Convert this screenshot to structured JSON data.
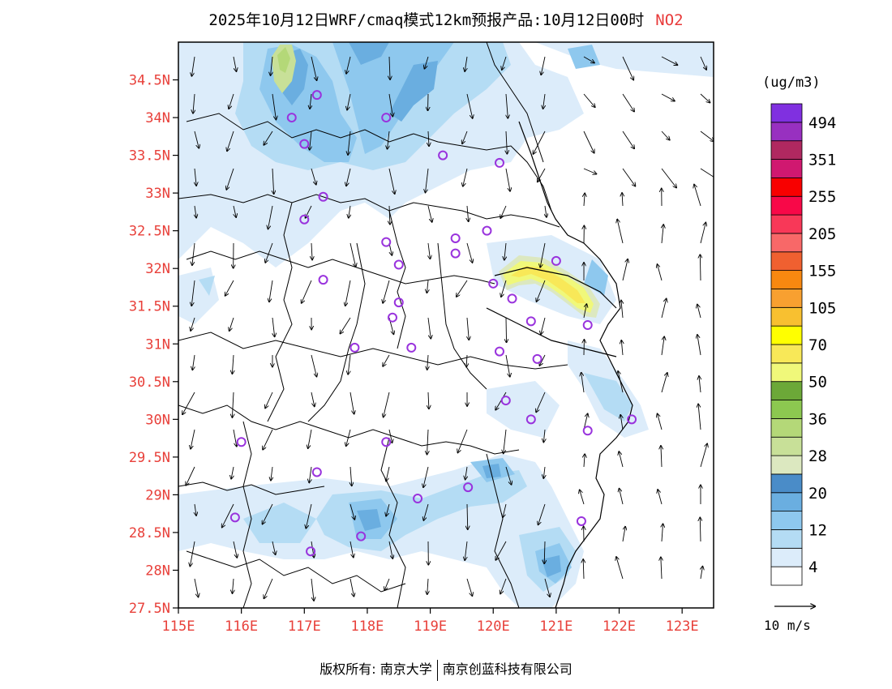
{
  "title": {
    "main": "2025年10月12日WRF/cmaq模式12km预报产品:10月12日00时",
    "pollutant": "NO2"
  },
  "map": {
    "lon_range": [
      115,
      123.5
    ],
    "lat_range": [
      27.5,
      35
    ],
    "x_ticks": [
      "115E",
      "116E",
      "117E",
      "118E",
      "119E",
      "120E",
      "121E",
      "122E",
      "123E"
    ],
    "y_ticks": [
      "27.5N",
      "28N",
      "28.5N",
      "29N",
      "29.5N",
      "30N",
      "30.5N",
      "31N",
      "31.5N",
      "32N",
      "32.5N",
      "33N",
      "33.5N",
      "34N",
      "34.5N"
    ],
    "tick_color": "#e8403a"
  },
  "legend": {
    "unit": "(ug/m3)",
    "colors": [
      "#ffffff",
      "#dcecfa",
      "#b4dcf4",
      "#8ec8ee",
      "#6aaee0",
      "#4a8cc8",
      "#dce8c0",
      "#c8e098",
      "#b4d878",
      "#8cc850",
      "#6ca838",
      "#f0f87a",
      "#f8e858",
      "#ffff00",
      "#f8c030",
      "#f8a030",
      "#f88810",
      "#f06030",
      "#f86868",
      "#f83858",
      "#f80848",
      "#f80000",
      "#d01870",
      "#b02860",
      "#9830c0",
      "#8030e0"
    ],
    "labels": [
      "4",
      "12",
      "20",
      "28",
      "36",
      "50",
      "70",
      "105",
      "155",
      "205",
      "255",
      "351",
      "494"
    ]
  },
  "wind_reference": {
    "label": "10 m/s"
  },
  "copyright": {
    "left": "版权所有: 南京大学",
    "right": "南京创蓝科技有限公司"
  },
  "stations": [
    [
      116.8,
      34.0
    ],
    [
      117.2,
      34.3
    ],
    [
      118.3,
      34.0
    ],
    [
      117.0,
      33.65
    ],
    [
      119.2,
      33.5
    ],
    [
      120.1,
      33.4
    ],
    [
      117.3,
      32.95
    ],
    [
      117.0,
      32.65
    ],
    [
      118.3,
      32.35
    ],
    [
      119.4,
      32.4
    ],
    [
      119.9,
      32.5
    ],
    [
      119.4,
      32.2
    ],
    [
      118.5,
      32.05
    ],
    [
      117.3,
      31.85
    ],
    [
      120.0,
      31.8
    ],
    [
      121.0,
      32.1
    ],
    [
      120.3,
      31.6
    ],
    [
      118.5,
      31.55
    ],
    [
      118.4,
      31.35
    ],
    [
      120.6,
      31.3
    ],
    [
      121.5,
      31.25
    ],
    [
      117.8,
      30.95
    ],
    [
      118.7,
      30.95
    ],
    [
      120.1,
      30.9
    ],
    [
      120.7,
      30.8
    ],
    [
      120.2,
      30.25
    ],
    [
      120.6,
      30.0
    ],
    [
      121.5,
      29.85
    ],
    [
      122.2,
      30.0
    ],
    [
      116.0,
      29.7
    ],
    [
      118.3,
      29.7
    ],
    [
      117.2,
      29.3
    ],
    [
      118.8,
      28.95
    ],
    [
      119.6,
      29.1
    ],
    [
      115.9,
      28.7
    ],
    [
      121.4,
      28.65
    ],
    [
      117.9,
      28.45
    ],
    [
      117.1,
      28.25
    ]
  ]
}
